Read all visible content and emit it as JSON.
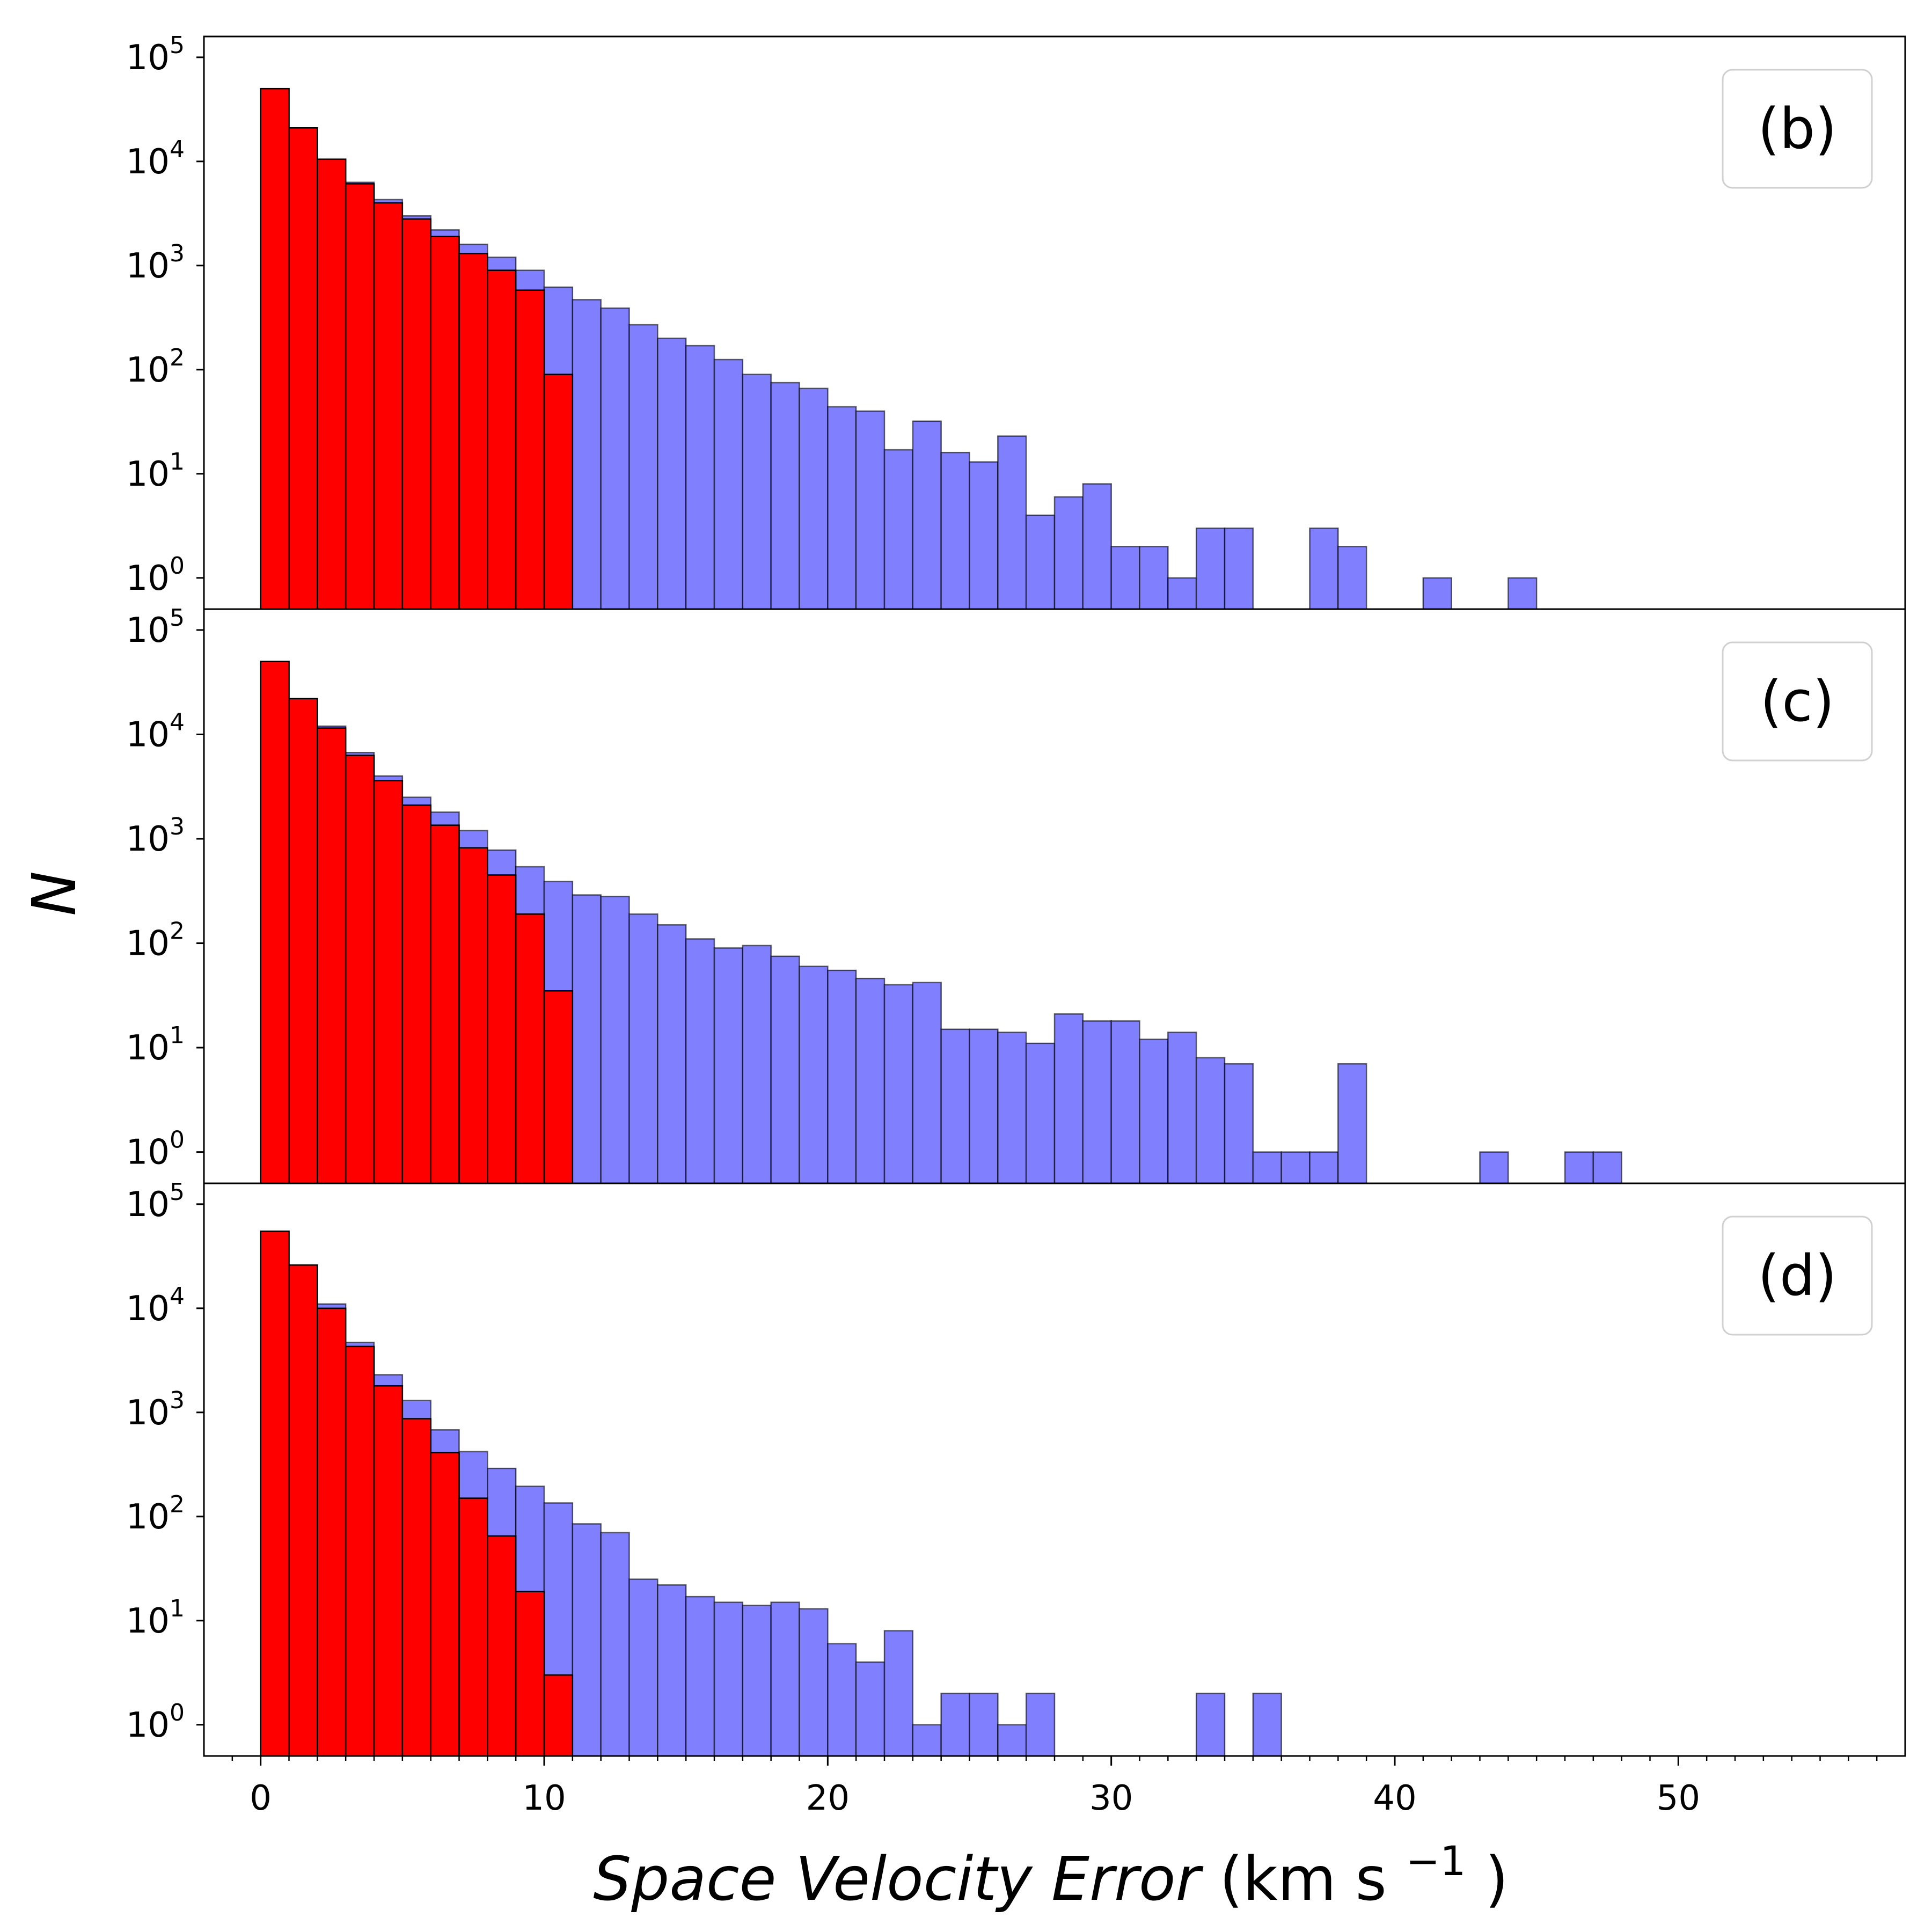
{
  "chart_data": {
    "type": "bar",
    "subtype": "stacked-overlay-histogram",
    "x_axis": {
      "label_italic": "Space Velocity Error",
      "label_unit_prefix": " (km s",
      "label_unit_sup": "−1",
      "label_unit_suffix": ")",
      "range": [
        -2,
        58
      ],
      "ticks": [
        "0",
        "10",
        "20",
        "30",
        "40",
        "50"
      ]
    },
    "y_axis": {
      "label": "N",
      "scale": "log",
      "range_exp": [
        -0.3,
        5.2
      ],
      "tick_base": "10",
      "tick_exponents": [
        "0",
        "1",
        "2",
        "3",
        "4",
        "5"
      ]
    },
    "bin_width": 1,
    "colors": {
      "blue": "#8080ff",
      "red": "#ff0000",
      "edge": "#000000"
    },
    "series": [
      {
        "key": "blue",
        "role": "all",
        "color": "#8080ff"
      },
      {
        "key": "red",
        "role": "subset",
        "color": "#ff0000"
      }
    ],
    "panels": [
      {
        "label": "(b)",
        "blue": [
          [
            0,
            50000
          ],
          [
            1,
            21000
          ],
          [
            2,
            10500
          ],
          [
            3,
            6300
          ],
          [
            4,
            4300
          ],
          [
            5,
            3000
          ],
          [
            6,
            2200
          ],
          [
            7,
            1600
          ],
          [
            8,
            1200
          ],
          [
            9,
            900
          ],
          [
            10,
            620
          ],
          [
            11,
            470
          ],
          [
            12,
            390
          ],
          [
            13,
            270
          ],
          [
            14,
            200
          ],
          [
            15,
            170
          ],
          [
            16,
            125
          ],
          [
            17,
            90
          ],
          [
            18,
            75
          ],
          [
            19,
            66
          ],
          [
            20,
            44
          ],
          [
            21,
            40
          ],
          [
            22,
            17
          ],
          [
            23,
            32
          ],
          [
            24,
            16
          ],
          [
            25,
            13
          ],
          [
            26,
            23
          ],
          [
            27,
            4
          ],
          [
            28,
            6
          ],
          [
            29,
            8
          ],
          [
            30,
            2
          ],
          [
            31,
            2
          ],
          [
            32,
            1
          ],
          [
            33,
            3
          ],
          [
            34,
            3
          ],
          [
            37,
            3
          ],
          [
            38,
            2
          ],
          [
            41,
            1
          ],
          [
            44,
            1
          ]
        ],
        "red": [
          [
            0,
            50000
          ],
          [
            1,
            21000
          ],
          [
            2,
            10500
          ],
          [
            3,
            6100
          ],
          [
            4,
            4000
          ],
          [
            5,
            2800
          ],
          [
            6,
            1900
          ],
          [
            7,
            1300
          ],
          [
            8,
            900
          ],
          [
            9,
            580
          ],
          [
            10,
            90
          ]
        ]
      },
      {
        "label": "(c)",
        "blue": [
          [
            0,
            50000
          ],
          [
            1,
            22000
          ],
          [
            2,
            12000
          ],
          [
            3,
            6700
          ],
          [
            4,
            4000
          ],
          [
            5,
            2500
          ],
          [
            6,
            1800
          ],
          [
            7,
            1200
          ],
          [
            8,
            780
          ],
          [
            9,
            540
          ],
          [
            10,
            390
          ],
          [
            11,
            290
          ],
          [
            12,
            280
          ],
          [
            13,
            190
          ],
          [
            14,
            150
          ],
          [
            15,
            110
          ],
          [
            16,
            90
          ],
          [
            17,
            95
          ],
          [
            18,
            75
          ],
          [
            19,
            60
          ],
          [
            20,
            55
          ],
          [
            21,
            46
          ],
          [
            22,
            40
          ],
          [
            23,
            42
          ],
          [
            24,
            15
          ],
          [
            25,
            15
          ],
          [
            26,
            14
          ],
          [
            27,
            11
          ],
          [
            28,
            21
          ],
          [
            29,
            18
          ],
          [
            30,
            18
          ],
          [
            31,
            12
          ],
          [
            32,
            14
          ],
          [
            33,
            8
          ],
          [
            34,
            7
          ],
          [
            35,
            1
          ],
          [
            36,
            1
          ],
          [
            37,
            1
          ],
          [
            38,
            7
          ],
          [
            43,
            1
          ],
          [
            46,
            1
          ],
          [
            47,
            1
          ]
        ],
        "red": [
          [
            0,
            50000
          ],
          [
            1,
            22000
          ],
          [
            2,
            11500
          ],
          [
            3,
            6300
          ],
          [
            4,
            3600
          ],
          [
            5,
            2100
          ],
          [
            6,
            1350
          ],
          [
            7,
            820
          ],
          [
            8,
            450
          ],
          [
            9,
            190
          ],
          [
            10,
            35
          ]
        ]
      },
      {
        "label": "(d)",
        "blue": [
          [
            0,
            55000
          ],
          [
            1,
            26000
          ],
          [
            2,
            11000
          ],
          [
            3,
            4700
          ],
          [
            4,
            2300
          ],
          [
            5,
            1300
          ],
          [
            6,
            680
          ],
          [
            7,
            420
          ],
          [
            8,
            290
          ],
          [
            9,
            195
          ],
          [
            10,
            135
          ],
          [
            11,
            85
          ],
          [
            12,
            70
          ],
          [
            13,
            25
          ],
          [
            14,
            22
          ],
          [
            15,
            17
          ],
          [
            16,
            15
          ],
          [
            17,
            14
          ],
          [
            18,
            15
          ],
          [
            19,
            13
          ],
          [
            20,
            6
          ],
          [
            21,
            4
          ],
          [
            22,
            8
          ],
          [
            23,
            1
          ],
          [
            24,
            2
          ],
          [
            25,
            2
          ],
          [
            26,
            1
          ],
          [
            27,
            2
          ],
          [
            33,
            2
          ],
          [
            35,
            2
          ]
        ],
        "red": [
          [
            0,
            55000
          ],
          [
            1,
            26000
          ],
          [
            2,
            10000
          ],
          [
            3,
            4300
          ],
          [
            4,
            1800
          ],
          [
            5,
            870
          ],
          [
            6,
            410
          ],
          [
            7,
            150
          ],
          [
            8,
            65
          ],
          [
            9,
            19
          ],
          [
            10,
            3
          ]
        ]
      }
    ]
  }
}
